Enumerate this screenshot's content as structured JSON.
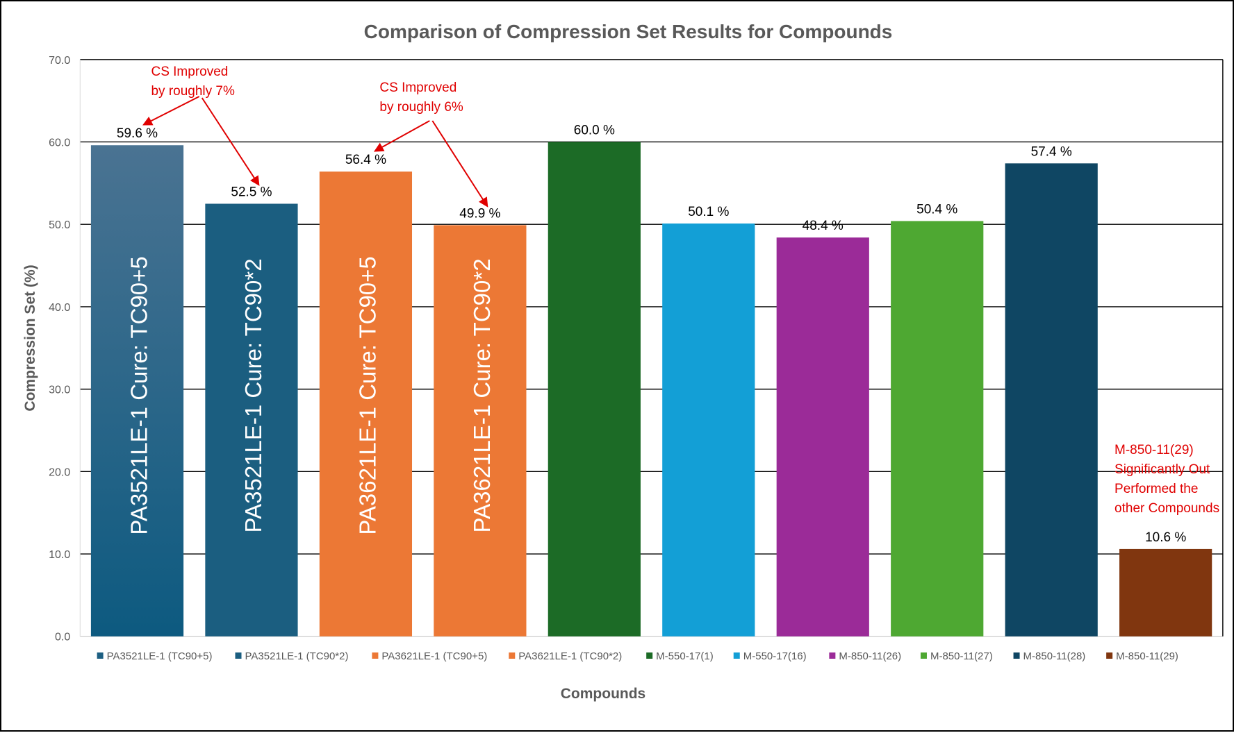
{
  "chart_data": {
    "type": "bar",
    "title": "Comparison of Compression Set Results for Compounds",
    "xlabel": "Compounds",
    "ylabel": "Compression Set (%)",
    "ylim": [
      0,
      70
    ],
    "yticks": [
      "0.0",
      "10.0",
      "20.0",
      "30.0",
      "40.0",
      "50.0",
      "60.0",
      "70.0"
    ],
    "grid": true,
    "legend_position": "bottom",
    "categories": [
      "PA3521LE-1 (TC90+5)",
      "PA3521LE-1 (TC90*2)",
      "PA3621LE-1 (TC90+5)",
      "PA3621LE-1 (TC90*2)",
      "M-550-17(1)",
      "M-550-17(16)",
      "M-850-11(26)",
      "M-850-11(27)",
      "M-850-11(28)",
      "M-850-11(29)"
    ],
    "values": [
      59.6,
      52.5,
      56.4,
      49.9,
      60.0,
      50.1,
      48.4,
      50.4,
      57.4,
      10.6
    ],
    "value_labels": [
      "59.6 %",
      "52.5 %",
      "56.4 %",
      "49.9 %",
      "60.0 %",
      "50.1 %",
      "48.4 %",
      "50.4 %",
      "57.4 %",
      "10.6 %"
    ],
    "colors": [
      "#1d5f82",
      "#1b5e80",
      "#ec7835",
      "#ec7835",
      "#1c6b26",
      "#139fd6",
      "#9b2b98",
      "#4ea832",
      "#0f4663",
      "#80360f"
    ],
    "bar_inner_labels": [
      "PA3521LE-1 Cure: TC90+5",
      "PA3521LE-1 Cure: TC90*2",
      "PA3621LE-1 Cure: TC90+5",
      "PA3621LE-1 Cure: TC90*2",
      "",
      "",
      "",
      "",
      "",
      ""
    ],
    "annotations": [
      {
        "lines": [
          "CS Improved",
          "by roughly 7%"
        ],
        "from_bar": 0,
        "to_bar": 1
      },
      {
        "lines": [
          "CS Improved",
          "by roughly 6%"
        ],
        "from_bar": 2,
        "to_bar": 3
      },
      {
        "lines": [
          "M-850-11(29)",
          "Significantly Out",
          "Performed the",
          "other Compounds"
        ],
        "bar": 9
      }
    ],
    "annotation_color": "#e00000"
  }
}
